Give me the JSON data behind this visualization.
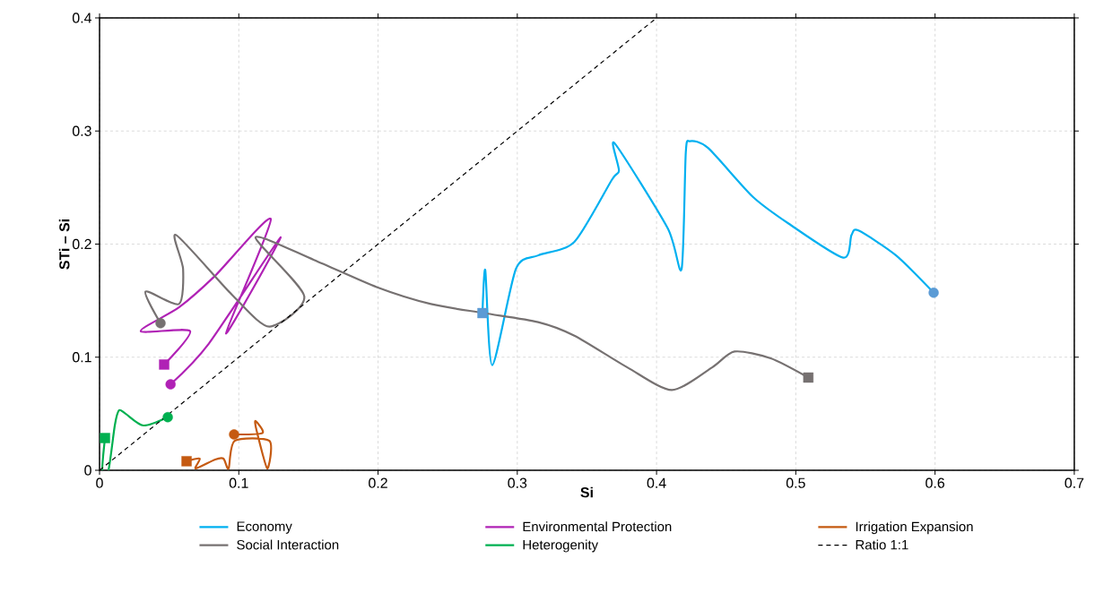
{
  "chart_data": {
    "type": "line",
    "xlabel": "Si",
    "ylabel": "STi – Si",
    "xlim": [
      0,
      0.7
    ],
    "ylim": [
      0,
      0.4
    ],
    "xticks": [
      0,
      0.1,
      0.2,
      0.3,
      0.4,
      0.5,
      0.6,
      0.7
    ],
    "yticks": [
      0,
      0.1,
      0.2,
      0.3,
      0.4
    ],
    "grid": true,
    "legend": "bottom",
    "series": [
      {
        "name": "Economy",
        "color": "#00b0f0",
        "x": [
          0.275,
          0.277,
          0.282,
          0.299,
          0.315,
          0.341,
          0.368,
          0.373,
          0.37,
          0.408,
          0.418,
          0.421,
          0.424,
          0.437,
          0.469,
          0.495,
          0.534,
          0.54,
          0.545,
          0.572,
          0.599
        ],
        "values": [
          0.139,
          0.177,
          0.093,
          0.178,
          0.19,
          0.202,
          0.257,
          0.265,
          0.289,
          0.214,
          0.178,
          0.281,
          0.291,
          0.285,
          0.242,
          0.218,
          0.188,
          0.208,
          0.212,
          0.19,
          0.157
        ]
      },
      {
        "name": "Environmental Protection",
        "color": "#b022b5",
        "x": [
          0.051,
          0.0785,
          0.13,
          0.0908,
          0.123,
          0.083,
          0.057,
          0.0296,
          0.065,
          0.0464
        ],
        "values": [
          0.076,
          0.112,
          0.206,
          0.121,
          0.222,
          0.172,
          0.144,
          0.123,
          0.123,
          0.0935
        ]
      },
      {
        "name": "Irrigation Expansion",
        "color": "#c55a11",
        "x": [
          0.0625,
          0.072,
          0.069,
          0.083,
          0.089,
          0.0927,
          0.097,
          0.122,
          0.1204,
          0.1127,
          0.112,
          0.117,
          0.0966
        ],
        "values": [
          0.008,
          0.0103,
          0.0016,
          0.0095,
          0.0103,
          0.0016,
          0.026,
          0.026,
          0.0016,
          0.0356,
          0.0436,
          0.033,
          0.0317
        ]
      },
      {
        "name": "Social Interaction",
        "color": "#767171",
        "x": [
          0.0438,
          0.033,
          0.057,
          0.06,
          0.055,
          0.096,
          0.122,
          0.147,
          0.112,
          0.154,
          0.199,
          0.238,
          0.276,
          0.315,
          0.341,
          0.379,
          0.411,
          0.44,
          0.456,
          0.482,
          0.509
        ],
        "values": [
          0.13,
          0.158,
          0.147,
          0.178,
          0.208,
          0.154,
          0.127,
          0.154,
          0.206,
          0.186,
          0.162,
          0.147,
          0.139,
          0.131,
          0.119,
          0.091,
          0.071,
          0.091,
          0.105,
          0.099,
          0.082
        ]
      },
      {
        "name": "Heterogenity",
        "color": "#00b050",
        "x": [
          0.049,
          0.0315,
          0.0187,
          0.014,
          0.011,
          0.0064,
          0.002,
          0.0039
        ],
        "values": [
          0.047,
          0.0396,
          0.05,
          0.053,
          0.04,
          0,
          0,
          0.0285
        ]
      },
      {
        "name": "Ratio 1:1",
        "color": "#000000",
        "line_style": "dashed",
        "x": [
          0,
          0.4
        ],
        "values": [
          0,
          0.4
        ]
      },
      {
        "type": "scatter",
        "marker": "circle",
        "color": "#5b9bd5",
        "x": [
          0.599
        ],
        "values": [
          0.157
        ]
      },
      {
        "type": "scatter",
        "marker": "square",
        "color": "#5b9bd5",
        "x": [
          0.275
        ],
        "values": [
          0.139
        ]
      },
      {
        "type": "scatter",
        "marker": "circle",
        "color": "#b022b5",
        "x": [
          0.051
        ],
        "values": [
          0.076
        ]
      },
      {
        "type": "scatter",
        "marker": "square",
        "color": "#b022b5",
        "x": [
          0.0464
        ],
        "values": [
          0.0935
        ]
      },
      {
        "type": "scatter",
        "marker": "circle",
        "color": "#c55a11",
        "x": [
          0.0966
        ],
        "values": [
          0.0317
        ]
      },
      {
        "type": "scatter",
        "marker": "square",
        "color": "#c55a11",
        "x": [
          0.0625
        ],
        "values": [
          0.008
        ]
      },
      {
        "type": "scatter",
        "marker": "circle",
        "color": "#767171",
        "x": [
          0.0438
        ],
        "values": [
          0.13
        ]
      },
      {
        "type": "scatter",
        "marker": "square",
        "color": "#767171",
        "x": [
          0.509
        ],
        "values": [
          0.082
        ]
      },
      {
        "type": "scatter",
        "marker": "circle",
        "color": "#00b050",
        "x": [
          0.049
        ],
        "values": [
          0.047
        ]
      },
      {
        "type": "scatter",
        "marker": "square",
        "color": "#00b050",
        "x": [
          0.0039
        ],
        "values": [
          0.0285
        ]
      }
    ]
  }
}
